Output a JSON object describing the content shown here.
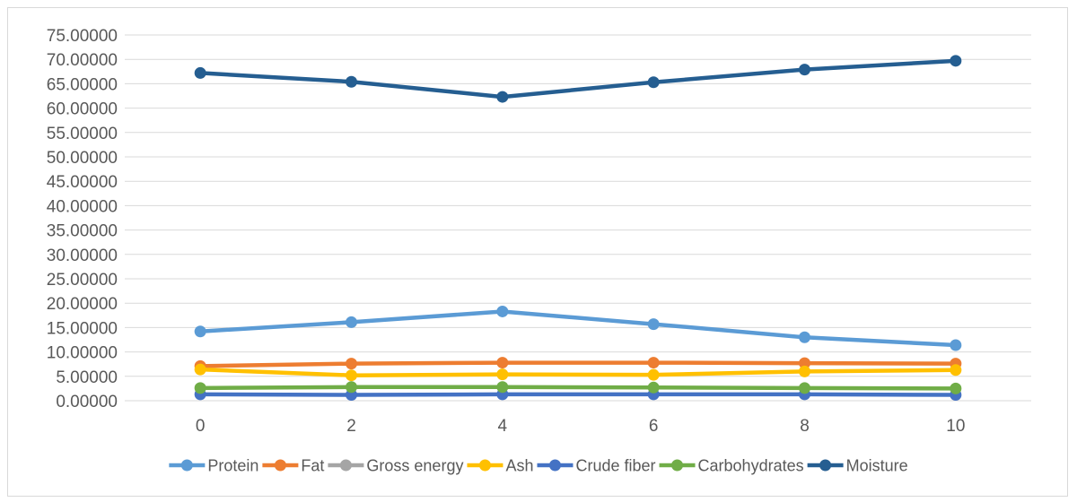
{
  "chart_data": {
    "type": "line",
    "title": "",
    "xlabel": "",
    "ylabel": "",
    "x": [
      0,
      2,
      4,
      6,
      8,
      10
    ],
    "x_tick_labels": [
      "0",
      "2",
      "4",
      "6",
      "8",
      "10"
    ],
    "ylim": [
      0,
      75
    ],
    "y_tick_step": 5,
    "y_tick_labels": [
      "0.00000",
      "5.00000",
      "10.00000",
      "15.00000",
      "20.00000",
      "25.00000",
      "30.00000",
      "35.00000",
      "40.00000",
      "45.00000",
      "50.00000",
      "55.00000",
      "60.00000",
      "65.00000",
      "70.00000",
      "75.00000"
    ],
    "grid": "horizontal",
    "legend_position": "bottom",
    "series": [
      {
        "name": "Protein",
        "color": "#5b9bd5",
        "values": [
          14.2,
          16.1,
          18.3,
          15.7,
          13.0,
          11.4
        ]
      },
      {
        "name": "Fat",
        "color": "#ed7d31",
        "values": [
          7.1,
          7.6,
          7.8,
          7.8,
          7.7,
          7.6
        ]
      },
      {
        "name": "Gross energy",
        "color": "#a5a5a5",
        "values": [
          null,
          null,
          null,
          null,
          null,
          null
        ]
      },
      {
        "name": "Ash",
        "color": "#ffc000",
        "values": [
          6.4,
          5.2,
          5.4,
          5.3,
          6.0,
          6.3
        ]
      },
      {
        "name": "Crude fiber",
        "color": "#4472c4",
        "values": [
          1.3,
          1.2,
          1.3,
          1.3,
          1.3,
          1.2
        ]
      },
      {
        "name": "Carbohydrates",
        "color": "#70ad47",
        "values": [
          2.6,
          2.8,
          2.8,
          2.7,
          2.6,
          2.5
        ]
      },
      {
        "name": "Moisture",
        "color": "#255e91",
        "values": [
          67.2,
          65.4,
          62.3,
          65.3,
          67.9,
          69.7
        ]
      }
    ]
  }
}
